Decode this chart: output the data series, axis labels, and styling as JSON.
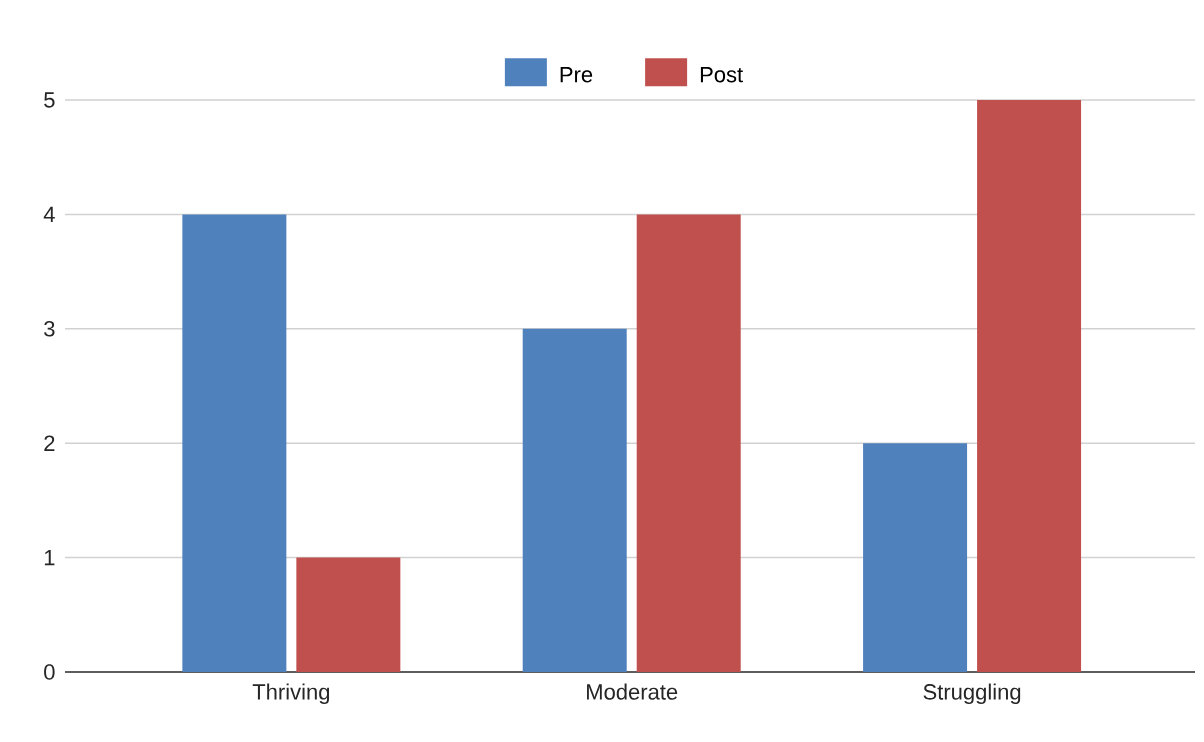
{
  "chart_data": {
    "type": "bar",
    "categories": [
      "Thriving",
      "Moderate",
      "Struggling"
    ],
    "series": [
      {
        "name": "Pre",
        "color": "#4f81bd",
        "values": [
          4,
          3,
          2
        ]
      },
      {
        "name": "Post",
        "color": "#c0504d",
        "values": [
          1,
          4,
          5
        ]
      }
    ],
    "ylim": [
      0,
      5
    ],
    "yticks": [
      0,
      1,
      2,
      3,
      4,
      5
    ],
    "grid": "y",
    "legend": "top"
  }
}
